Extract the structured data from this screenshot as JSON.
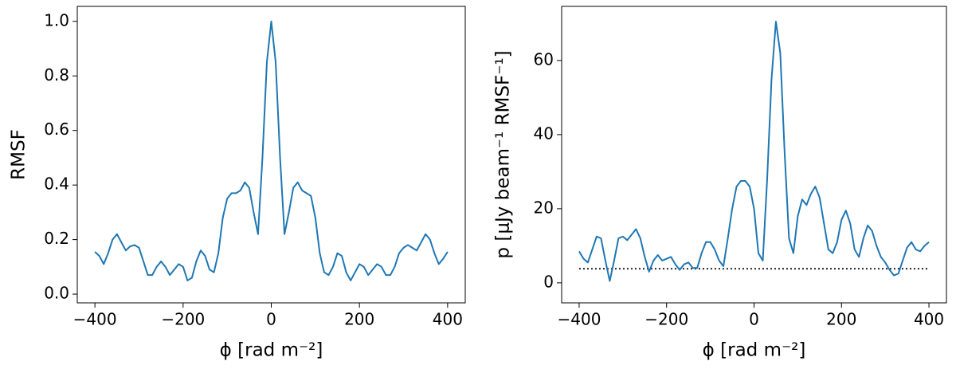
{
  "chart_data": [
    {
      "type": "line",
      "xlabel": "ϕ [rad m⁻²]",
      "ylabel": "RMSF",
      "x": [
        -400,
        -390,
        -380,
        -370,
        -360,
        -350,
        -340,
        -330,
        -320,
        -310,
        -300,
        -290,
        -280,
        -270,
        -260,
        -250,
        -240,
        -230,
        -220,
        -210,
        -200,
        -190,
        -180,
        -170,
        -160,
        -150,
        -140,
        -130,
        -120,
        -110,
        -100,
        -90,
        -80,
        -70,
        -60,
        -50,
        -40,
        -30,
        -20,
        -10,
        0,
        10,
        20,
        30,
        40,
        50,
        60,
        70,
        80,
        90,
        100,
        110,
        120,
        130,
        140,
        150,
        160,
        170,
        180,
        190,
        200,
        210,
        220,
        230,
        240,
        250,
        260,
        270,
        280,
        290,
        300,
        310,
        320,
        330,
        340,
        350,
        360,
        370,
        380,
        390,
        400
      ],
      "series": [
        {
          "color": "#1f77b4",
          "values": [
            0.155,
            0.14,
            0.11,
            0.15,
            0.2,
            0.22,
            0.19,
            0.16,
            0.175,
            0.18,
            0.17,
            0.12,
            0.07,
            0.07,
            0.1,
            0.12,
            0.1,
            0.07,
            0.09,
            0.11,
            0.1,
            0.05,
            0.06,
            0.12,
            0.16,
            0.14,
            0.09,
            0.08,
            0.15,
            0.28,
            0.35,
            0.37,
            0.37,
            0.38,
            0.41,
            0.39,
            0.3,
            0.22,
            0.5,
            0.85,
            1.0,
            0.85,
            0.5,
            0.22,
            0.3,
            0.39,
            0.41,
            0.38,
            0.37,
            0.36,
            0.28,
            0.15,
            0.08,
            0.07,
            0.1,
            0.15,
            0.14,
            0.08,
            0.05,
            0.08,
            0.11,
            0.1,
            0.07,
            0.09,
            0.11,
            0.1,
            0.07,
            0.07,
            0.1,
            0.15,
            0.17,
            0.18,
            0.17,
            0.16,
            0.19,
            0.22,
            0.2,
            0.15,
            0.11,
            0.13,
            0.155
          ]
        }
      ],
      "xlim": [
        -440,
        440
      ],
      "ylim": [
        -0.032,
        1.055
      ],
      "xticks": [
        {
          "value": -400,
          "label": "−400"
        },
        {
          "value": -200,
          "label": "−200"
        },
        0,
        200,
        400
      ],
      "yticks": [
        {
          "value": 0,
          "label": "0.0"
        },
        {
          "value": 0.2,
          "label": "0.2"
        },
        {
          "value": 0.4,
          "label": "0.4"
        },
        {
          "value": 0.6,
          "label": "0.6"
        },
        {
          "value": 0.8,
          "label": "0.8"
        },
        {
          "value": 1,
          "label": "1.0"
        }
      ]
    },
    {
      "type": "line",
      "xlabel": "ϕ [rad m⁻²]",
      "ylabel": "p [μJy beam⁻¹ RMSF⁻¹]",
      "x": [
        -400,
        -390,
        -380,
        -370,
        -360,
        -350,
        -340,
        -330,
        -320,
        -310,
        -300,
        -290,
        -280,
        -270,
        -260,
        -250,
        -240,
        -230,
        -220,
        -210,
        -200,
        -190,
        -180,
        -170,
        -160,
        -150,
        -140,
        -130,
        -120,
        -110,
        -100,
        -90,
        -80,
        -70,
        -60,
        -50,
        -40,
        -30,
        -20,
        -10,
        0,
        10,
        20,
        30,
        40,
        50,
        60,
        70,
        80,
        90,
        100,
        110,
        120,
        130,
        140,
        150,
        160,
        170,
        180,
        190,
        200,
        210,
        220,
        230,
        240,
        250,
        260,
        270,
        280,
        290,
        300,
        310,
        320,
        330,
        340,
        350,
        360,
        370,
        380,
        390,
        400
      ],
      "series": [
        {
          "color": "#1f77b4",
          "values": [
            8.5,
            6.5,
            5.5,
            9,
            12.5,
            12,
            6,
            0.5,
            6,
            12,
            12.5,
            11.5,
            13,
            14.5,
            12,
            7,
            3,
            6,
            7.5,
            6,
            6.5,
            7,
            5,
            3.5,
            5,
            5.5,
            4,
            4,
            8,
            11,
            11,
            9,
            6,
            4.5,
            12,
            20,
            26,
            27.5,
            27.5,
            26,
            20,
            8,
            6,
            28,
            55,
            70.5,
            62,
            35,
            12,
            8,
            18,
            22.5,
            21,
            24,
            26,
            23,
            16,
            9,
            8,
            11,
            17,
            19.5,
            16,
            9,
            7,
            12,
            15.5,
            14,
            10,
            7,
            5.5,
            3.5,
            2,
            2.5,
            6,
            9.5,
            11,
            9,
            8.5,
            10,
            11
          ]
        }
      ],
      "threshold": 3.8,
      "threshold_color": "#000000",
      "xlim": [
        -440,
        440
      ],
      "ylim": [
        -5.4,
        74.6
      ],
      "xticks": [
        {
          "value": -400,
          "label": "−400"
        },
        {
          "value": -200,
          "label": "−200"
        },
        0,
        200,
        400
      ],
      "yticks": [
        0,
        20,
        40,
        60
      ]
    }
  ]
}
